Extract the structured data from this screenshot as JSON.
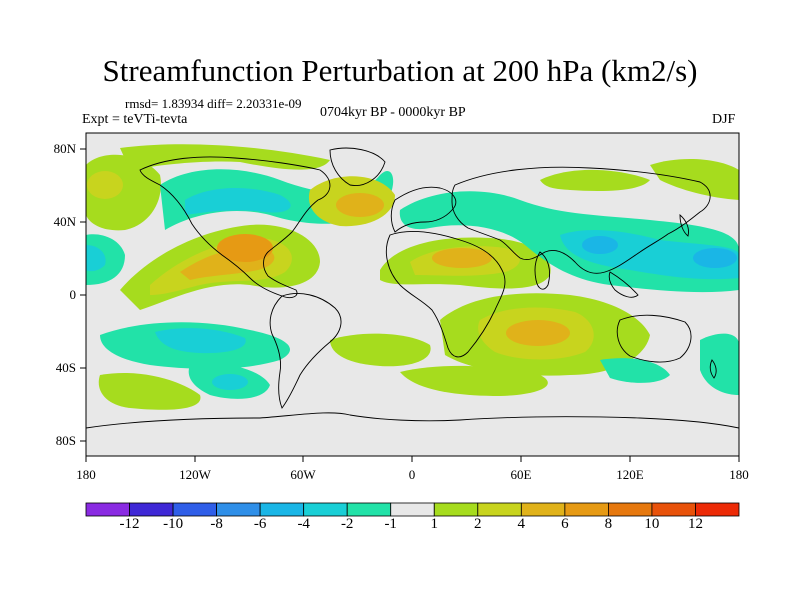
{
  "title": "Streamfunction Perturbation at 200 hPa (km2/s)",
  "stats": "rmsd= 1.83934 diff= 2.20331e-09",
  "experiment": "Expt = teVTi-tevta",
  "period": "0704kyr BP - 0000kyr BP",
  "season": "DJF",
  "lat_ticks": [
    "80N",
    "40N",
    "0",
    "40S",
    "80S"
  ],
  "lon_ticks": [
    "180",
    "120W",
    "60W",
    "0",
    "60E",
    "120E",
    "180"
  ],
  "colorbar": {
    "labels": [
      "-12",
      "-10",
      "-8",
      "-6",
      "-4",
      "-2",
      "-1",
      "1",
      "2",
      "4",
      "6",
      "8",
      "10",
      "12"
    ],
    "colors": [
      "#8a2be2",
      "#3f28d6",
      "#2f5ee8",
      "#2f8fe8",
      "#1ab6e6",
      "#19cfd6",
      "#22e2a8",
      "#e8e8e8",
      "#a6dc1e",
      "#c8d41e",
      "#e0b21a",
      "#e69a14",
      "#e6780e",
      "#e8520a",
      "#ec2a06"
    ]
  },
  "map": {
    "background_color": "#e8e8e8",
    "coast_color": "#000000"
  }
}
